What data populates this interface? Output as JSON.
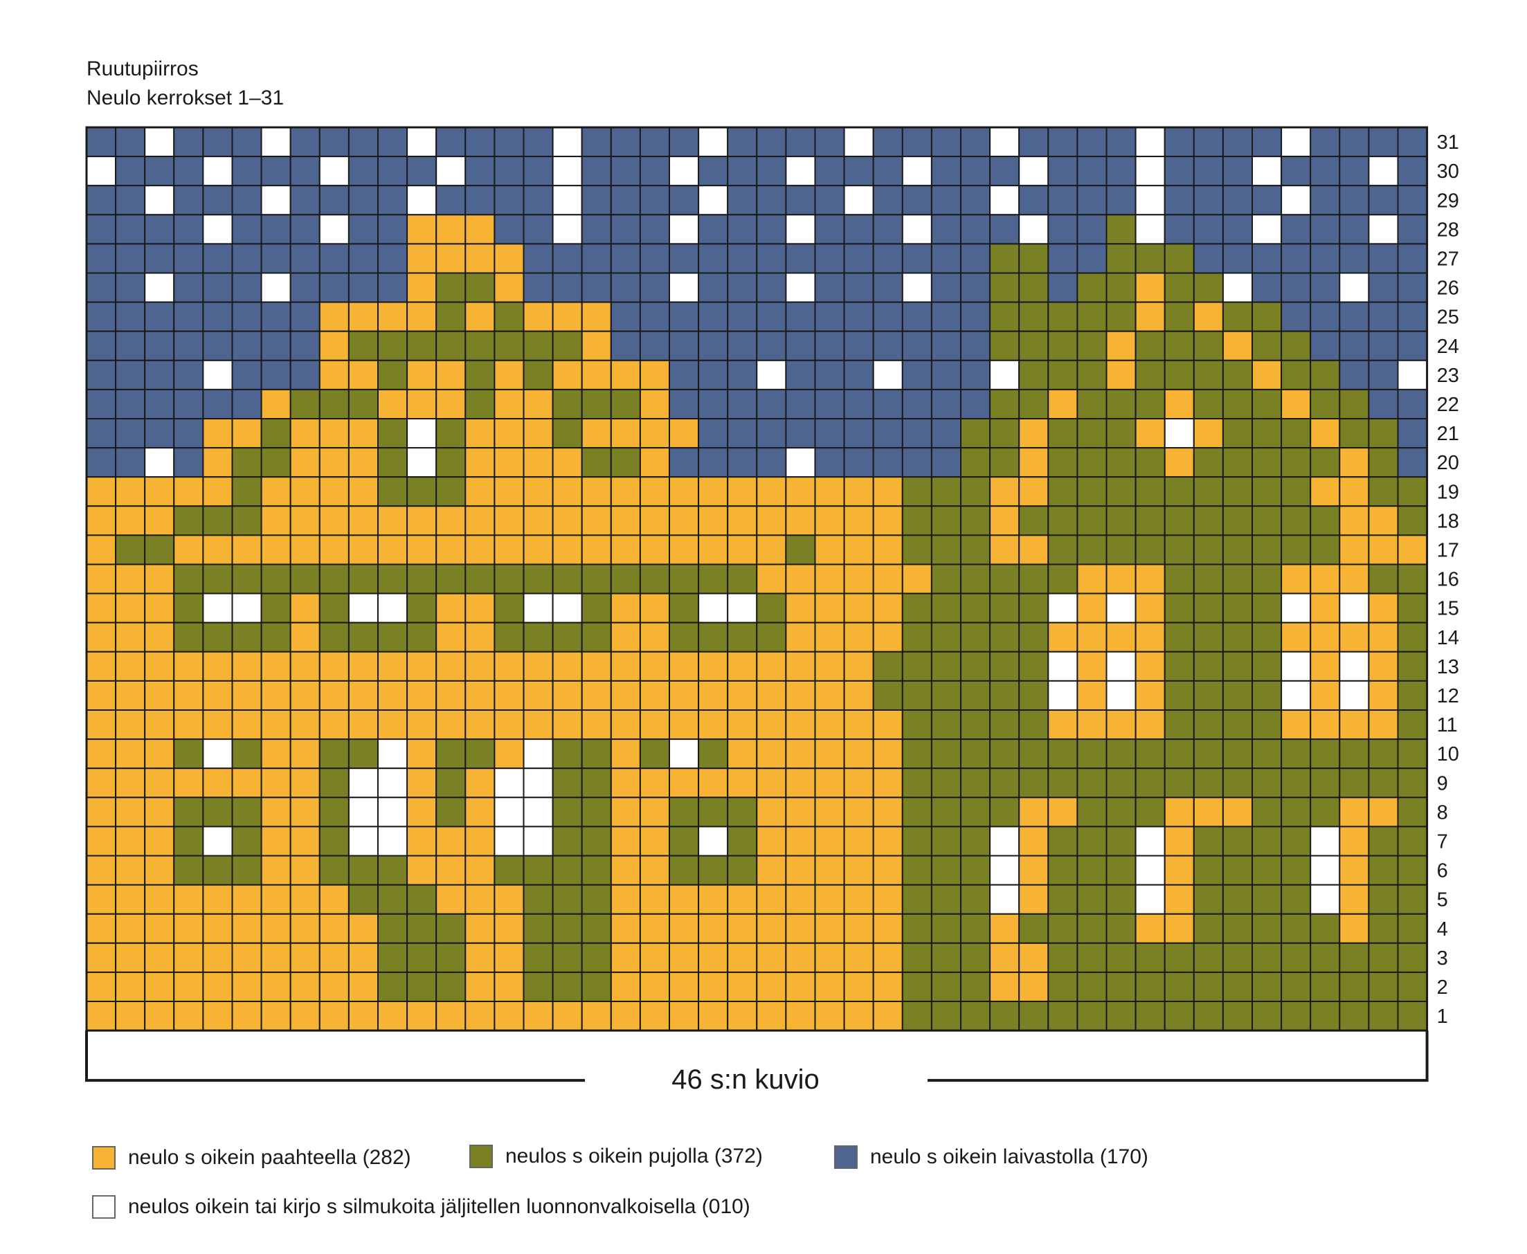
{
  "title": "Ruutupiirros",
  "subtitle": "Neulo kerrokset 1–31",
  "repeat_label": "46 s:n kuvio",
  "colors": {
    "O": "#f7b334",
    "G": "#7a8024",
    "B": "#4f6591",
    "W": "#ffffff",
    "grid": "#1a1a1a"
  },
  "legend": [
    {
      "code": "O",
      "label": "neulo s oikein paahteella (282)"
    },
    {
      "code": "G",
      "label": "neulos s oikein pujolla (372)"
    },
    {
      "code": "B",
      "label": "neulo s oikein laivastolla (170)"
    },
    {
      "code": "W",
      "label": "neulos oikein tai kirjo s silmukoita jäljitellen luonnonvalkoisella (010)"
    }
  ],
  "chart_data": {
    "type": "grid",
    "stitches": 46,
    "rows": 31,
    "row_order": "top row = 31, bottom row = 1",
    "row_labels": [
      "31",
      "30",
      "29",
      "28",
      "27",
      "26",
      "25",
      "24",
      "23",
      "22",
      "21",
      "20",
      "19",
      "18",
      "17",
      "16",
      "15",
      "14",
      "13",
      "12",
      "11",
      "10",
      "9",
      "8",
      "7",
      "6",
      "5",
      "4",
      "3",
      "2",
      "1"
    ],
    "grid": [
      "BBWBBBWBBBBWBBBBWBBBBWBBBBWBBBBWBBBBWBBBBWBBBB",
      "WBBBWBBBWBBBWBBBWBBBWBBBWBBBWBBBWBBBWBBBWBBBWB",
      "BBWBBBWBBBBWBBBBWBBBBWBBBBWBBBBWBBBBWBBBBWBBBB",
      "BBBBWBBBWBBOOOBBWBBBWBBBWBBBWBBBWBBGWBBBWBBBWB",
      "BBBBBBBBBBBOOOOBBBBBBBBBBBBBBBBGGBBGGGBBBBBBBB",
      "BBWBBBWBBBBOGGOBBBBBWBBBWBBBWBBGGBGGOGGWBBBWBB",
      "BBBBBBBBOOOOGOGOOOBBBBBBBBBBBBBGGGGGOGOGGBBBBB",
      "BBBBBBBBOGGGGGGGGOBBBBBBBBBBBBBGGGGOGGGOGGBBBB",
      "BBBBWBBBOOGOOGOGOOOOBBBWBBBWBBBWGGGOGGGGOGGBBWB",
      "BBBBBBOGGGOOOGOOGGGOBBBBBBBBBBBGGOGGGOGGGOGGBBB",
      "BBBBOOGOOOGWGOOOGOOOOBBBBBBBBBGGOGGGOWOGGGOGGBB",
      "BBWBOGGOOOGWGOOOOGGOBBBBWBBBBBGGOGGGGOGGGGGOGBB",
      "OOOOOGOOOOGGGOOOOOOOOOOOOOOOGGGOOGGGGGGGGGOOGG",
      "OOOGGGOOOOOOOOOOOOOOOOOOOOOOGGGOGGGGGGGGGGGOOG",
      "OGGOOOOOOOOOOOOOOOOOOOOOGOOOGGGOOGGGGGGGGGGOOO",
      "OOOGGGGGGGGGGGGGGGGGGGGOOOOOOGGGGGOOOGGGGOOOGG",
      "OOOGWWGOGWWGOOGWWGOOGWWGOOOOGGGGGWOWOGGGGWOWOG",
      "OOOGGGGOGGGGOOGGGGOOGGGGOOOOGGGGGOOOOGGGGOOOOG",
      "OOOOOOOOOOOOOOOOOOOOOOOOOOOGGGGGGWOWOGGGGWOWOG",
      "OOOOOOOOOOOOOOOOOOOOOOOOOOOGGGGGGWOWOGGGGWOWOG",
      "OOOOOOOOOOOOOOOOOOOOOOOOOOOOGGGGGOOOOGGGGOOOOG",
      "OOOGWGOOGGWOGGOWGGOGWGOOOOOOGGGGGGGGGGGGGGGGGG",
      "OOOOOOOOGWWOGOWWGGOOOOOOOOOOGGGGGGGGGGGGGGGGGG",
      "OOOGGGOOGWWOGOWWGGOOGGGOOOOOGGGGOOGGGOOOGGGOOGG",
      "OOOGWGOOGWWOOOWWGGOOGWGOOOOOGGGWOGGGWOGGGGWOGGG",
      "OOOGGGOOGGGOOOGGGGOOGGGOOOOOGGGWOGGGWOGGGGWOGGG",
      "OOOOOOOOOGGGOOOGGGOOOOOOOOOOGGGWOGGGWOGGGGWOGGG",
      "OOOOOOOOOOGGGOOGGGOOOOOOOOOOGGGOGGGGOOGGGGGOGGG",
      "OOOOOOOOOOGGGOOGGGOOOOOOOOOOGGGOOGGGGGGGGGGGGGG",
      "OOOOOOOOOOGGGOOGGGOOOOOOOOOOGGGOOGGGGGGGGGGGGGG",
      "OOOOOOOOOOOOOOOOOOOOOOOOOOOOGGGGGGGGGGGGGGGGGG"
    ]
  }
}
